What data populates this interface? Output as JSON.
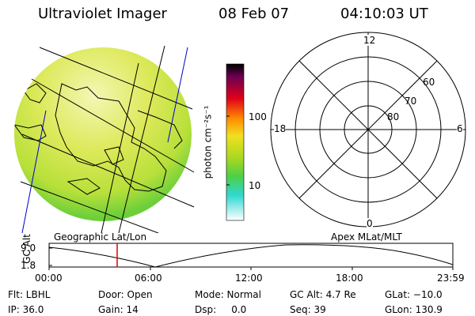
{
  "header": {
    "title": "Ultraviolet Imager",
    "date": "08 Feb 07",
    "time": "04:10:03 UT"
  },
  "colorbar": {
    "unit_label": "photon cm⁻²s⁻¹",
    "ticks": [
      "100",
      "10"
    ]
  },
  "polar_plot": {
    "mlt_labels": [
      "12",
      "18",
      "6",
      "0"
    ],
    "lat_labels": [
      "60",
      "70",
      "80"
    ],
    "caption": "Apex MLat/MLT"
  },
  "geo_plot": {
    "caption": "Geographic Lat/Lon"
  },
  "altitude_panel": {
    "axis_label": "GC Alt",
    "y_ticks": [
      "9.0",
      "1.8"
    ],
    "x_ticks": [
      "00:00",
      "06:00",
      "12:00",
      "18:00",
      "23:59"
    ],
    "current_time_marker": "04:10"
  },
  "info": {
    "filter": "Flt: LBHL",
    "door": "Door: Open",
    "mode": "Mode: Normal",
    "gc_alt": "GC Alt: 4.7 Re",
    "glat": "GLat: −10.0",
    "ip": "IP: 36.0",
    "gain": "Gain: 14",
    "dsp": "Dsp:     0.0",
    "seq": "Seq: 39",
    "glon": "GLon: 130.9"
  },
  "colors": {
    "marker": "#e00000",
    "grid_line": "#0000cc"
  }
}
